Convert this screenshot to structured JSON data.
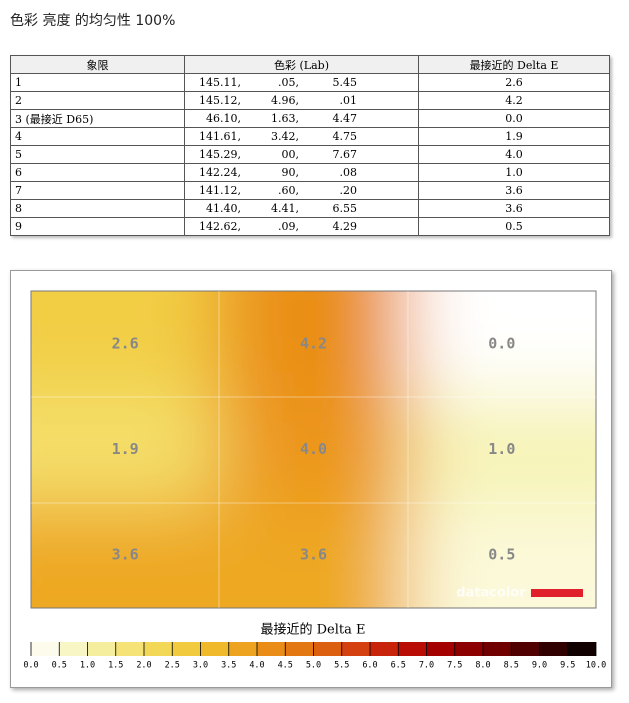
{
  "header": {
    "title": "色彩 亮度 的均匀性 100%"
  },
  "table": {
    "columns": [
      "象限",
      "色彩 (Lab)",
      "最接近的 Delta E"
    ],
    "rows": [
      [
        "1",
        [
          "145.11,",
          ".05,",
          "5.45"
        ],
        "2.6"
      ],
      [
        "2",
        [
          "145.12,",
          "4.96,",
          ".01"
        ],
        "4.2"
      ],
      [
        "3 (最接近 D65)",
        [
          "46.10,",
          "1.63,",
          "4.47"
        ],
        "0.0"
      ],
      [
        "4",
        [
          "141.61,",
          "3.42,",
          "4.75"
        ],
        "1.9"
      ],
      [
        "5",
        [
          "145.29,",
          "00,",
          "7.67"
        ],
        "4.0"
      ],
      [
        "6",
        [
          "142.24,",
          "90,",
          ".08"
        ],
        "1.0"
      ],
      [
        "7",
        [
          "141.12,",
          ".60,",
          ".20"
        ],
        "3.6"
      ],
      [
        "8",
        [
          "41.40,",
          "4.41,",
          "6.55"
        ],
        "3.6"
      ],
      [
        "9",
        [
          "142.62,",
          ".09,",
          "4.29"
        ],
        "0.5"
      ]
    ]
  },
  "chart_data": {
    "type": "heatmap",
    "values": [
      [
        2.6,
        4.2,
        0.0
      ],
      [
        1.9,
        4.0,
        1.0
      ],
      [
        3.6,
        3.6,
        0.5
      ]
    ],
    "value_labels": [
      [
        "2.6",
        "4.2",
        "0.0"
      ],
      [
        "1.9",
        "4.0",
        "1.0"
      ],
      [
        "3.6",
        "3.6",
        "0.5"
      ]
    ],
    "watermark": "datacolor",
    "colorbar_title": "最接近的 Delta E",
    "clim": [
      0,
      10
    ],
    "cticks": [
      {
        "value": 0,
        "label": "0.0"
      },
      {
        "value": 0.5,
        "label": "0.5"
      },
      {
        "value": 1,
        "label": "1.0"
      },
      {
        "value": 1.5,
        "label": "1.5"
      },
      {
        "value": 2,
        "label": "2.0"
      },
      {
        "value": 2.5,
        "label": "2.5"
      },
      {
        "value": 3,
        "label": "3.0"
      },
      {
        "value": 3.5,
        "label": "3.5"
      },
      {
        "value": 4,
        "label": "4.0"
      },
      {
        "value": 4.5,
        "label": "4.5"
      },
      {
        "value": 5,
        "label": "5.0"
      },
      {
        "value": 5.5,
        "label": "5.5"
      },
      {
        "value": 6,
        "label": "6.0"
      },
      {
        "value": 6.5,
        "label": "6.5"
      },
      {
        "value": 7,
        "label": "7.0"
      },
      {
        "value": 7.5,
        "label": "7.5"
      },
      {
        "value": 8,
        "label": "8.0"
      },
      {
        "value": 8.5,
        "label": "8.5"
      },
      {
        "value": 9,
        "label": "9.0"
      },
      {
        "value": 9.5,
        "label": "9.5"
      },
      {
        "value": 10,
        "label": "10.0"
      }
    ]
  }
}
